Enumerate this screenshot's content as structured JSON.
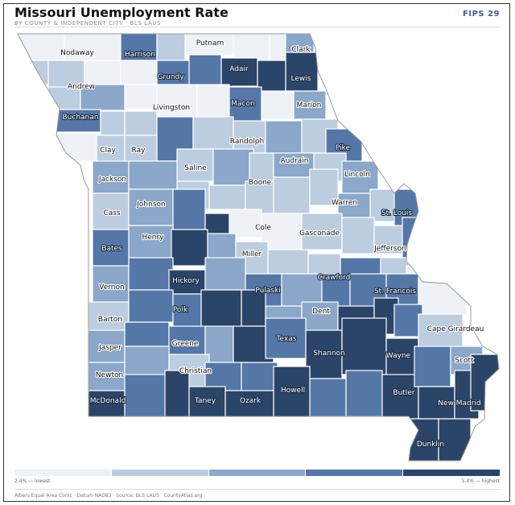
{
  "header": {
    "title": "Missouri Unemployment Rate",
    "subtitle": "BY COUNTY & INDEPENDENT CITY · BLS LAUS",
    "badge": "FIPS 29"
  },
  "legend": {
    "low_label": "2.4% — lowest",
    "high_label": "5.4% — highest",
    "colors": [
      "#eef1f6",
      "#bccde0",
      "#8ba7c9",
      "#5577a7",
      "#2b4568"
    ]
  },
  "footer": "Albers Equal Area Conic · Datum NAD83 · Source: BLS LAUS · CountyAtlas.org",
  "map": {
    "labels": [
      {
        "name": "Nodaway",
        "class": 0
      },
      {
        "name": "Harrison",
        "class": 3
      },
      {
        "name": "Putnam",
        "class": 0
      },
      {
        "name": "Clark",
        "class": 2
      },
      {
        "name": "Andrew",
        "class": 1
      },
      {
        "name": "Grundy",
        "class": 3
      },
      {
        "name": "Adair",
        "class": 4
      },
      {
        "name": "Lewis",
        "class": 4
      },
      {
        "name": "Buchanan",
        "class": 3
      },
      {
        "name": "Livingston",
        "class": 0
      },
      {
        "name": "Macon",
        "class": 3
      },
      {
        "name": "Marion",
        "class": 2
      },
      {
        "name": "Clay",
        "class": 1
      },
      {
        "name": "Ray",
        "class": 1
      },
      {
        "name": "Randolph",
        "class": 1
      },
      {
        "name": "Pike",
        "class": 3
      },
      {
        "name": "Saline",
        "class": 1
      },
      {
        "name": "Audrain",
        "class": 2
      },
      {
        "name": "Lincoln",
        "class": 2
      },
      {
        "name": "Jackson",
        "class": 2
      },
      {
        "name": "Boone",
        "class": 1
      },
      {
        "name": "Johnson",
        "class": 2
      },
      {
        "name": "Warren",
        "class": 2
      },
      {
        "name": "St. Louis",
        "class": 3
      },
      {
        "name": "Cass",
        "class": 1
      },
      {
        "name": "Cole",
        "class": 0
      },
      {
        "name": "Gasconade",
        "class": 0
      },
      {
        "name": "Henry",
        "class": 2
      },
      {
        "name": "Bates",
        "class": 3
      },
      {
        "name": "Jefferson",
        "class": 1
      },
      {
        "name": "Miller",
        "class": 1
      },
      {
        "name": "Hickory",
        "class": 4
      },
      {
        "name": "Crawford",
        "class": 3
      },
      {
        "name": "Vernon",
        "class": 2
      },
      {
        "name": "Pulaski",
        "class": 3
      },
      {
        "name": "St. Francois",
        "class": 3
      },
      {
        "name": "Polk",
        "class": 3
      },
      {
        "name": "Dent",
        "class": 2
      },
      {
        "name": "Barton",
        "class": 1
      },
      {
        "name": "Cape Girardeau",
        "class": 1
      },
      {
        "name": "Greene",
        "class": 2
      },
      {
        "name": "Texas",
        "class": 3
      },
      {
        "name": "Jasper",
        "class": 2
      },
      {
        "name": "Shannon",
        "class": 4
      },
      {
        "name": "Wayne",
        "class": 4
      },
      {
        "name": "Scott",
        "class": 2
      },
      {
        "name": "Christian",
        "class": 1
      },
      {
        "name": "Newton",
        "class": 2
      },
      {
        "name": "Howell",
        "class": 4
      },
      {
        "name": "Butler",
        "class": 4
      },
      {
        "name": "McDonald",
        "class": 4
      },
      {
        "name": "Taney",
        "class": 4
      },
      {
        "name": "Ozark",
        "class": 4
      },
      {
        "name": "New Madrid",
        "class": 4
      },
      {
        "name": "Dunklin",
        "class": 4
      }
    ]
  }
}
